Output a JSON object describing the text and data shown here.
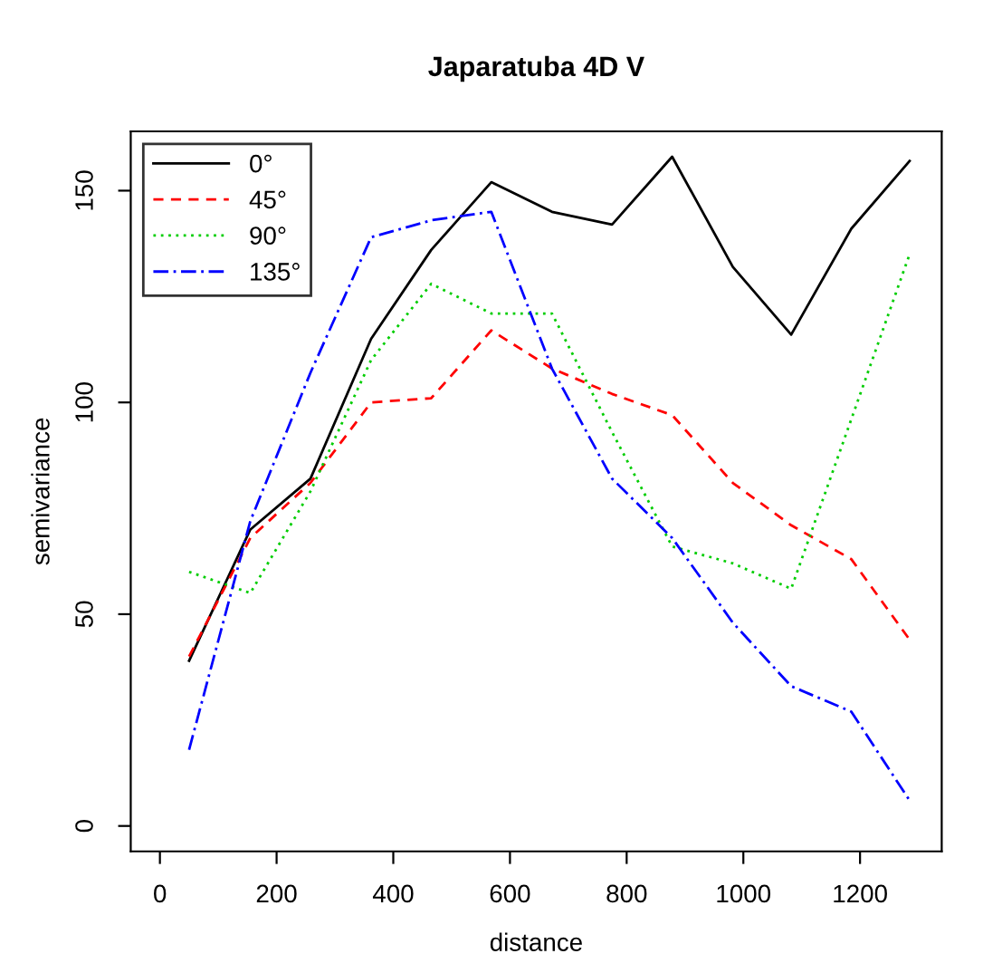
{
  "chart_data": {
    "type": "line",
    "title": "Japaratuba 4D V",
    "xlabel": "distance",
    "ylabel": "semivariance",
    "x": [
      50,
      155,
      258,
      362,
      465,
      568,
      672,
      775,
      878,
      982,
      1082,
      1185,
      1285
    ],
    "series": [
      {
        "name": "0°",
        "color": "#000000",
        "line_style": "solid",
        "values": [
          39,
          70,
          82,
          115,
          136,
          152,
          145,
          142,
          158,
          132,
          116,
          141,
          157
        ]
      },
      {
        "name": "45°",
        "color": "#ff0000",
        "line_style": "dashed",
        "values": [
          40,
          68,
          81,
          100,
          101,
          117,
          108,
          102,
          97,
          81,
          71,
          63,
          44
        ]
      },
      {
        "name": "90°",
        "color": "#00cd00",
        "line_style": "dotted",
        "values": [
          60,
          55,
          79,
          110,
          128,
          121,
          121,
          93,
          66,
          62,
          56,
          96,
          135
        ]
      },
      {
        "name": "135°",
        "color": "#0000ff",
        "line_style": "dashdot",
        "values": [
          18,
          72,
          107,
          139,
          143,
          145,
          108,
          82,
          68,
          48,
          33,
          27,
          6
        ]
      }
    ],
    "xlim": [
      -50,
      1340
    ],
    "ylim": [
      -6,
      164
    ],
    "xticks": [
      0,
      200,
      400,
      600,
      800,
      1000,
      1200
    ],
    "yticks": [
      0,
      50,
      100,
      150
    ],
    "grid": false,
    "legend": "top left",
    "marker": "none"
  }
}
